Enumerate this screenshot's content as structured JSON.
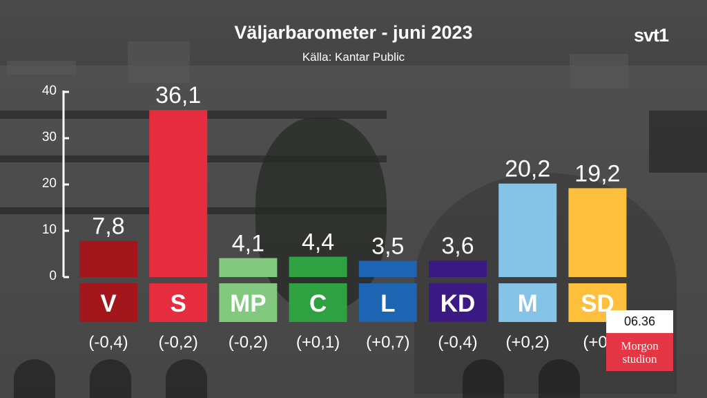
{
  "header": {
    "title": "Väljarbarometer - juni 2023",
    "source": "Källa: Kantar Public",
    "channel_logo": "svt1"
  },
  "overlay": {
    "time": "06.36",
    "program_line1": "Morgon",
    "program_line2": "studion"
  },
  "chart_data": {
    "type": "bar",
    "title": "Väljarbarometer - juni 2023",
    "subtitle": "Källa: Kantar Public",
    "categories": [
      "V",
      "S",
      "MP",
      "C",
      "L",
      "KD",
      "M",
      "SD"
    ],
    "values": [
      7.8,
      36.1,
      4.1,
      4.4,
      3.5,
      3.6,
      20.2,
      19.2
    ],
    "value_labels": [
      "7,8",
      "36,1",
      "4,1",
      "4,4",
      "3,5",
      "3,6",
      "20,2",
      "19,2"
    ],
    "changes": [
      "(-0,4)",
      "(-0,2)",
      "(-0,2)",
      "(+0,1)",
      "(+0,7)",
      "(-0,4)",
      "(+0,2)",
      "(+0,"
    ],
    "colors": [
      "#a3161c",
      "#e52d3f",
      "#82c87f",
      "#2ea140",
      "#1d64b3",
      "#3b1a84",
      "#85c4e7",
      "#fdbf3c"
    ],
    "yticks": [
      0,
      10,
      20,
      30,
      40
    ],
    "ylim": [
      0,
      40
    ],
    "grid": false,
    "xlabel": "",
    "ylabel": ""
  }
}
